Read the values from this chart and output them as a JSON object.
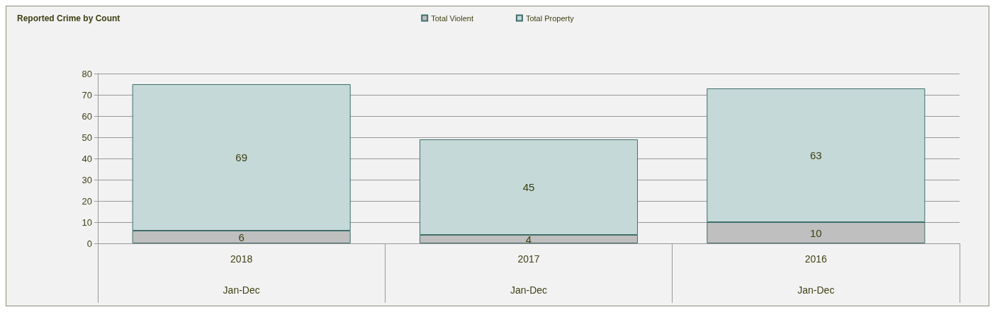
{
  "chart_data": {
    "type": "bar",
    "title": "Reported Crime by Count",
    "stacked": true,
    "categories": [
      "2018\nJan-Dec",
      "2017\nJan-Dec",
      "2016\nJan-Dec"
    ],
    "series": [
      {
        "name": "Total Violent",
        "color": "#bfbfbf",
        "values": [
          6,
          4,
          10
        ]
      },
      {
        "name": "Total Property",
        "color": "#c4d9d8",
        "values": [
          69,
          45,
          63
        ]
      }
    ],
    "ylim": [
      0,
      80
    ],
    "yticks": [
      0,
      10,
      20,
      30,
      40,
      50,
      60,
      70,
      80
    ],
    "grid": "y",
    "legend": "top",
    "data_labels": true
  }
}
